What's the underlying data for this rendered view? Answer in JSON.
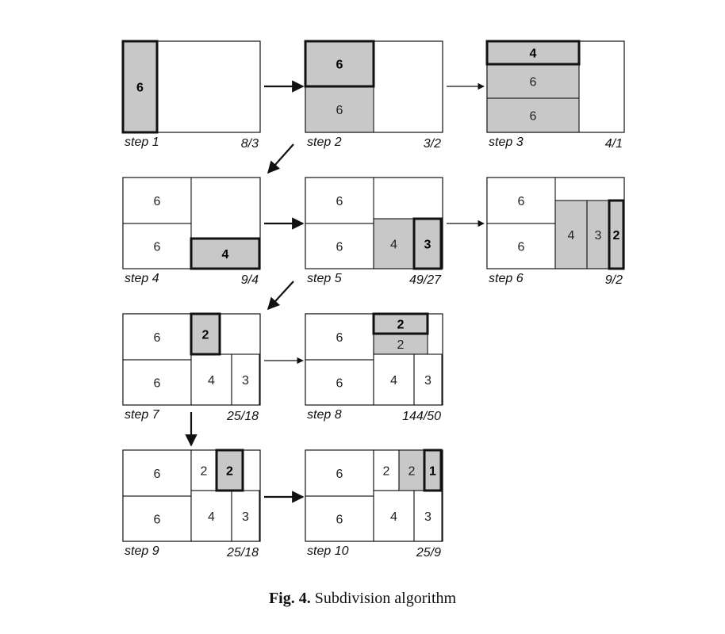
{
  "caption": {
    "number": "Fig. 4.",
    "text": "Subdivision algorithm"
  },
  "colors": {
    "filled": "#c8c8c8",
    "empty": "#ffffff",
    "stroke": "#111111"
  },
  "steps": [
    {
      "id": "step-1",
      "label": "step 1",
      "ratio": "8/3",
      "cells": [
        {
          "value": "6",
          "filled": true,
          "highlighted": true
        }
      ]
    },
    {
      "id": "step-2",
      "label": "step 2",
      "ratio": "3/2",
      "cells": [
        {
          "value": "6",
          "filled": true,
          "highlighted": true
        },
        {
          "value": "6",
          "filled": true,
          "highlighted": false
        }
      ]
    },
    {
      "id": "step-3",
      "label": "step 3",
      "ratio": "4/1",
      "cells": [
        {
          "value": "4",
          "filled": true,
          "highlighted": true
        },
        {
          "value": "6",
          "filled": true,
          "highlighted": false
        },
        {
          "value": "6",
          "filled": true,
          "highlighted": false
        }
      ]
    },
    {
      "id": "step-4",
      "label": "step 4",
      "ratio": "9/4",
      "cells": [
        {
          "value": "6",
          "filled": false,
          "highlighted": false
        },
        {
          "value": "6",
          "filled": false,
          "highlighted": false
        },
        {
          "value": "4",
          "filled": true,
          "highlighted": true
        }
      ]
    },
    {
      "id": "step-5",
      "label": "step 5",
      "ratio": "49/27",
      "cells": [
        {
          "value": "6",
          "filled": false,
          "highlighted": false
        },
        {
          "value": "6",
          "filled": false,
          "highlighted": false
        },
        {
          "value": "4",
          "filled": true,
          "highlighted": false
        },
        {
          "value": "3",
          "filled": true,
          "highlighted": true
        }
      ]
    },
    {
      "id": "step-6",
      "label": "step 6",
      "ratio": "9/2",
      "cells": [
        {
          "value": "6",
          "filled": false,
          "highlighted": false
        },
        {
          "value": "6",
          "filled": false,
          "highlighted": false
        },
        {
          "value": "4",
          "filled": true,
          "highlighted": false
        },
        {
          "value": "3",
          "filled": true,
          "highlighted": false
        },
        {
          "value": "2",
          "filled": true,
          "highlighted": true
        }
      ]
    },
    {
      "id": "step-7",
      "label": "step 7",
      "ratio": "25/18",
      "cells": [
        {
          "value": "6",
          "filled": false,
          "highlighted": false
        },
        {
          "value": "6",
          "filled": false,
          "highlighted": false
        },
        {
          "value": "2",
          "filled": true,
          "highlighted": true
        },
        {
          "value": "4",
          "filled": false,
          "highlighted": false
        },
        {
          "value": "3",
          "filled": false,
          "highlighted": false
        }
      ]
    },
    {
      "id": "step-8",
      "label": "step 8",
      "ratio": "144/50",
      "cells": [
        {
          "value": "6",
          "filled": false,
          "highlighted": false
        },
        {
          "value": "6",
          "filled": false,
          "highlighted": false
        },
        {
          "value": "2",
          "filled": true,
          "highlighted": true
        },
        {
          "value": "2",
          "filled": true,
          "highlighted": false
        },
        {
          "value": "4",
          "filled": false,
          "highlighted": false
        },
        {
          "value": "3",
          "filled": false,
          "highlighted": false
        }
      ]
    },
    {
      "id": "step-9",
      "label": "step 9",
      "ratio": "25/18",
      "cells": [
        {
          "value": "6",
          "filled": false,
          "highlighted": false
        },
        {
          "value": "6",
          "filled": false,
          "highlighted": false
        },
        {
          "value": "2",
          "filled": false,
          "highlighted": false
        },
        {
          "value": "2",
          "filled": true,
          "highlighted": true
        },
        {
          "value": "4",
          "filled": false,
          "highlighted": false
        },
        {
          "value": "3",
          "filled": false,
          "highlighted": false
        }
      ]
    },
    {
      "id": "step-10",
      "label": "step 10",
      "ratio": "25/9",
      "cells": [
        {
          "value": "6",
          "filled": false,
          "highlighted": false
        },
        {
          "value": "6",
          "filled": false,
          "highlighted": false
        },
        {
          "value": "2",
          "filled": false,
          "highlighted": false
        },
        {
          "value": "2",
          "filled": true,
          "highlighted": false
        },
        {
          "value": "1",
          "filled": true,
          "highlighted": true
        },
        {
          "value": "4",
          "filled": false,
          "highlighted": false
        },
        {
          "value": "3",
          "filled": false,
          "highlighted": false
        }
      ]
    }
  ]
}
